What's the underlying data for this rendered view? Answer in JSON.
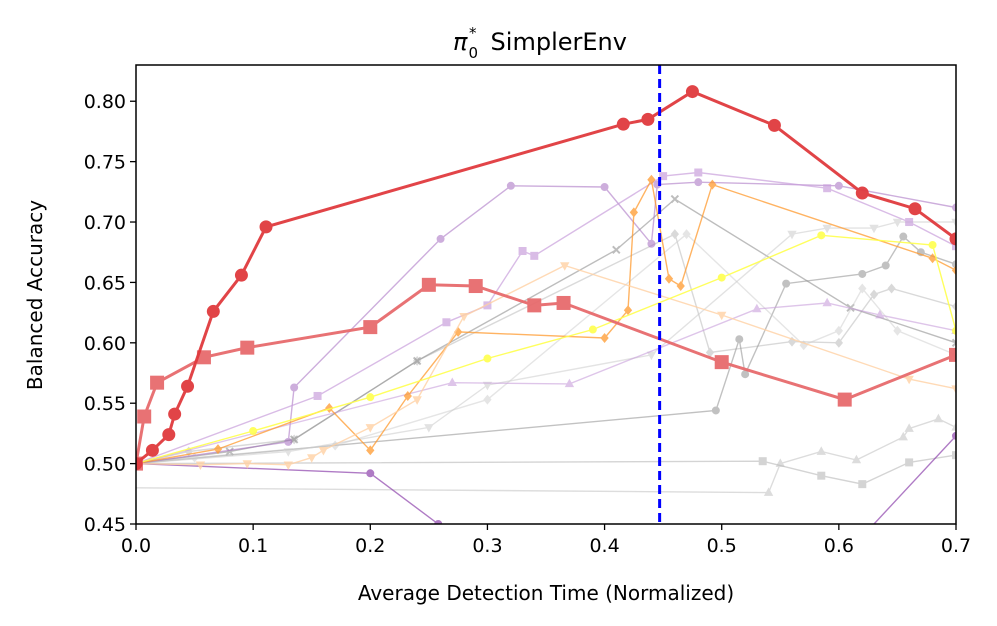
{
  "chart_data": {
    "type": "line",
    "title_main": "π",
    "title_sub": "0",
    "title_sup": "*",
    "title_rest": "SimplerEnv",
    "xlabel": "Average Detection Time (Normalized)",
    "ylabel": "Balanced Accuracy",
    "xlim": [
      0.0,
      0.7
    ],
    "ylim": [
      0.45,
      0.83
    ],
    "xticks": [
      0.0,
      0.1,
      0.2,
      0.3,
      0.4,
      0.5,
      0.6,
      0.7
    ],
    "xtick_labels": [
      "0.0",
      "0.1",
      "0.2",
      "0.3",
      "0.4",
      "0.5",
      "0.6",
      "0.7"
    ],
    "yticks": [
      0.45,
      0.5,
      0.55,
      0.6,
      0.65,
      0.7,
      0.75,
      0.8
    ],
    "ytick_labels": [
      "0.45",
      "0.50",
      "0.55",
      "0.60",
      "0.65",
      "0.70",
      "0.75",
      "0.80"
    ],
    "vline": {
      "x": 0.447,
      "color": "#0000ff"
    },
    "series": [
      {
        "name": "gray-diamond",
        "color": "#bbbbbb",
        "marker": "diamond",
        "alpha": 0.55,
        "x": [
          0.0,
          0.045,
          0.135,
          0.24,
          0.46,
          0.49,
          0.56,
          0.6,
          0.63,
          0.645,
          0.7
        ],
        "y": [
          0.5,
          0.51,
          0.52,
          0.585,
          0.69,
          0.592,
          0.601,
          0.6,
          0.64,
          0.645,
          0.63
        ]
      },
      {
        "name": "gray-circle",
        "color": "#999999",
        "marker": "circle",
        "alpha": 0.6,
        "x": [
          0.0,
          0.495,
          0.515,
          0.52,
          0.555,
          0.62,
          0.64,
          0.655,
          0.67,
          0.7
        ],
        "y": [
          0.5,
          0.544,
          0.603,
          0.574,
          0.649,
          0.657,
          0.664,
          0.688,
          0.675,
          0.665
        ]
      },
      {
        "name": "gray-x",
        "color": "#888888",
        "marker": "x",
        "alpha": 0.55,
        "x": [
          0.0,
          0.08,
          0.135,
          0.24,
          0.41,
          0.46,
          0.61,
          0.7
        ],
        "y": [
          0.5,
          0.51,
          0.52,
          0.585,
          0.677,
          0.719,
          0.629,
          0.6
        ]
      },
      {
        "name": "lightgray-square",
        "color": "#aaaaaa",
        "marker": "square",
        "alpha": 0.5,
        "x": [
          0.0,
          0.535,
          0.585,
          0.62,
          0.66,
          0.7
        ],
        "y": [
          0.5,
          0.502,
          0.49,
          0.483,
          0.501,
          0.507
        ]
      },
      {
        "name": "lightgray-triangle",
        "color": "#bbbbbb",
        "marker": "triangle",
        "alpha": 0.5,
        "x": [
          0.0,
          0.54,
          0.55,
          0.585,
          0.615,
          0.655,
          0.66,
          0.685,
          0.7
        ],
        "y": [
          0.48,
          0.476,
          0.5,
          0.51,
          0.503,
          0.522,
          0.529,
          0.537,
          0.53
        ]
      },
      {
        "name": "lightgray-down",
        "color": "#cccccc",
        "marker": "tri_down",
        "alpha": 0.55,
        "x": [
          0.0,
          0.13,
          0.25,
          0.3,
          0.44,
          0.56,
          0.59,
          0.63,
          0.65,
          0.7
        ],
        "y": [
          0.5,
          0.51,
          0.53,
          0.565,
          0.59,
          0.69,
          0.695,
          0.695,
          0.7,
          0.7
        ]
      },
      {
        "name": "lightgray-diamond",
        "color": "#cccccc",
        "marker": "diamond",
        "alpha": 0.5,
        "x": [
          0.0,
          0.05,
          0.17,
          0.3,
          0.47,
          0.57,
          0.6,
          0.62,
          0.65,
          0.7
        ],
        "y": [
          0.5,
          0.505,
          0.515,
          0.553,
          0.69,
          0.598,
          0.61,
          0.645,
          0.61,
          0.59
        ]
      },
      {
        "name": "purple-circle",
        "color": "#a56cc1",
        "marker": "circle",
        "alpha": 0.55,
        "x": [
          0.0,
          0.13,
          0.135,
          0.26,
          0.32,
          0.4,
          0.44,
          0.445,
          0.48,
          0.6,
          0.7
        ],
        "y": [
          0.5,
          0.518,
          0.563,
          0.686,
          0.73,
          0.729,
          0.682,
          0.731,
          0.733,
          0.73,
          0.712
        ]
      },
      {
        "name": "purple-square",
        "color": "#c9a0dc",
        "marker": "square",
        "alpha": 0.7,
        "x": [
          0.0,
          0.155,
          0.265,
          0.3,
          0.33,
          0.34,
          0.45,
          0.48,
          0.59,
          0.66,
          0.7
        ],
        "y": [
          0.5,
          0.556,
          0.617,
          0.631,
          0.676,
          0.672,
          0.738,
          0.741,
          0.728,
          0.7,
          0.68
        ]
      },
      {
        "name": "purple-triangle",
        "color": "#c9a0dc",
        "marker": "triangle",
        "alpha": 0.6,
        "x": [
          0.0,
          0.27,
          0.37,
          0.53,
          0.59,
          0.635,
          0.7
        ],
        "y": [
          0.5,
          0.567,
          0.566,
          0.628,
          0.633,
          0.623,
          0.61
        ]
      },
      {
        "name": "purple-line",
        "color": "#8e44ad",
        "marker": "circle",
        "alpha": 0.7,
        "x": [
          0.0,
          0.2,
          0.258
        ],
        "y": [
          0.5,
          0.492,
          0.45
        ]
      },
      {
        "name": "purple-line-b",
        "color": "#8e44ad",
        "marker": "circle",
        "alpha": 0.7,
        "x": [
          0.63,
          0.7
        ],
        "y": [
          0.45,
          0.523
        ]
      },
      {
        "name": "orange-diamond",
        "color": "#ff9a2e",
        "marker": "diamond",
        "alpha": 0.75,
        "x": [
          0.0,
          0.07,
          0.165,
          0.2,
          0.232,
          0.275,
          0.4,
          0.42,
          0.425,
          0.44,
          0.455,
          0.465,
          0.492,
          0.68,
          0.7
        ],
        "y": [
          0.5,
          0.512,
          0.546,
          0.511,
          0.556,
          0.609,
          0.604,
          0.627,
          0.708,
          0.735,
          0.653,
          0.647,
          0.731,
          0.67,
          0.66
        ]
      },
      {
        "name": "peach-down",
        "color": "#ffd1a4",
        "marker": "tri_down",
        "alpha": 0.8,
        "x": [
          0.0,
          0.055,
          0.095,
          0.13,
          0.15,
          0.16,
          0.2,
          0.24,
          0.28,
          0.366,
          0.5,
          0.66,
          0.7
        ],
        "y": [
          0.5,
          0.499,
          0.5,
          0.499,
          0.505,
          0.511,
          0.53,
          0.553,
          0.622,
          0.664,
          0.623,
          0.57,
          0.562
        ]
      },
      {
        "name": "yellow-line",
        "color": "#ffff4d",
        "marker": "circle",
        "alpha": 0.9,
        "x": [
          0.0,
          0.1,
          0.2,
          0.3,
          0.39,
          0.5,
          0.585,
          0.68,
          0.7
        ],
        "y": [
          0.5,
          0.527,
          0.555,
          0.587,
          0.611,
          0.654,
          0.689,
          0.681,
          0.61
        ]
      },
      {
        "name": "red-square",
        "color": "#e76b6d",
        "marker": "square",
        "alpha": 0.95,
        "x": [
          0.0,
          0.007,
          0.018,
          0.058,
          0.095,
          0.2,
          0.25,
          0.29,
          0.34,
          0.365,
          0.5,
          0.605,
          0.7
        ],
        "y": [
          0.5,
          0.539,
          0.567,
          0.588,
          0.596,
          0.613,
          0.648,
          0.647,
          0.631,
          0.633,
          0.584,
          0.553,
          0.59
        ]
      },
      {
        "name": "red-circle",
        "color": "#e03a3e",
        "marker": "circle",
        "alpha": 0.95,
        "x": [
          0.0,
          0.014,
          0.028,
          0.033,
          0.044,
          0.066,
          0.09,
          0.111,
          0.416,
          0.437,
          0.475,
          0.545,
          0.62,
          0.665,
          0.7
        ],
        "y": [
          0.5,
          0.511,
          0.524,
          0.541,
          0.564,
          0.626,
          0.656,
          0.696,
          0.781,
          0.785,
          0.808,
          0.78,
          0.724,
          0.711,
          0.686
        ]
      }
    ]
  }
}
